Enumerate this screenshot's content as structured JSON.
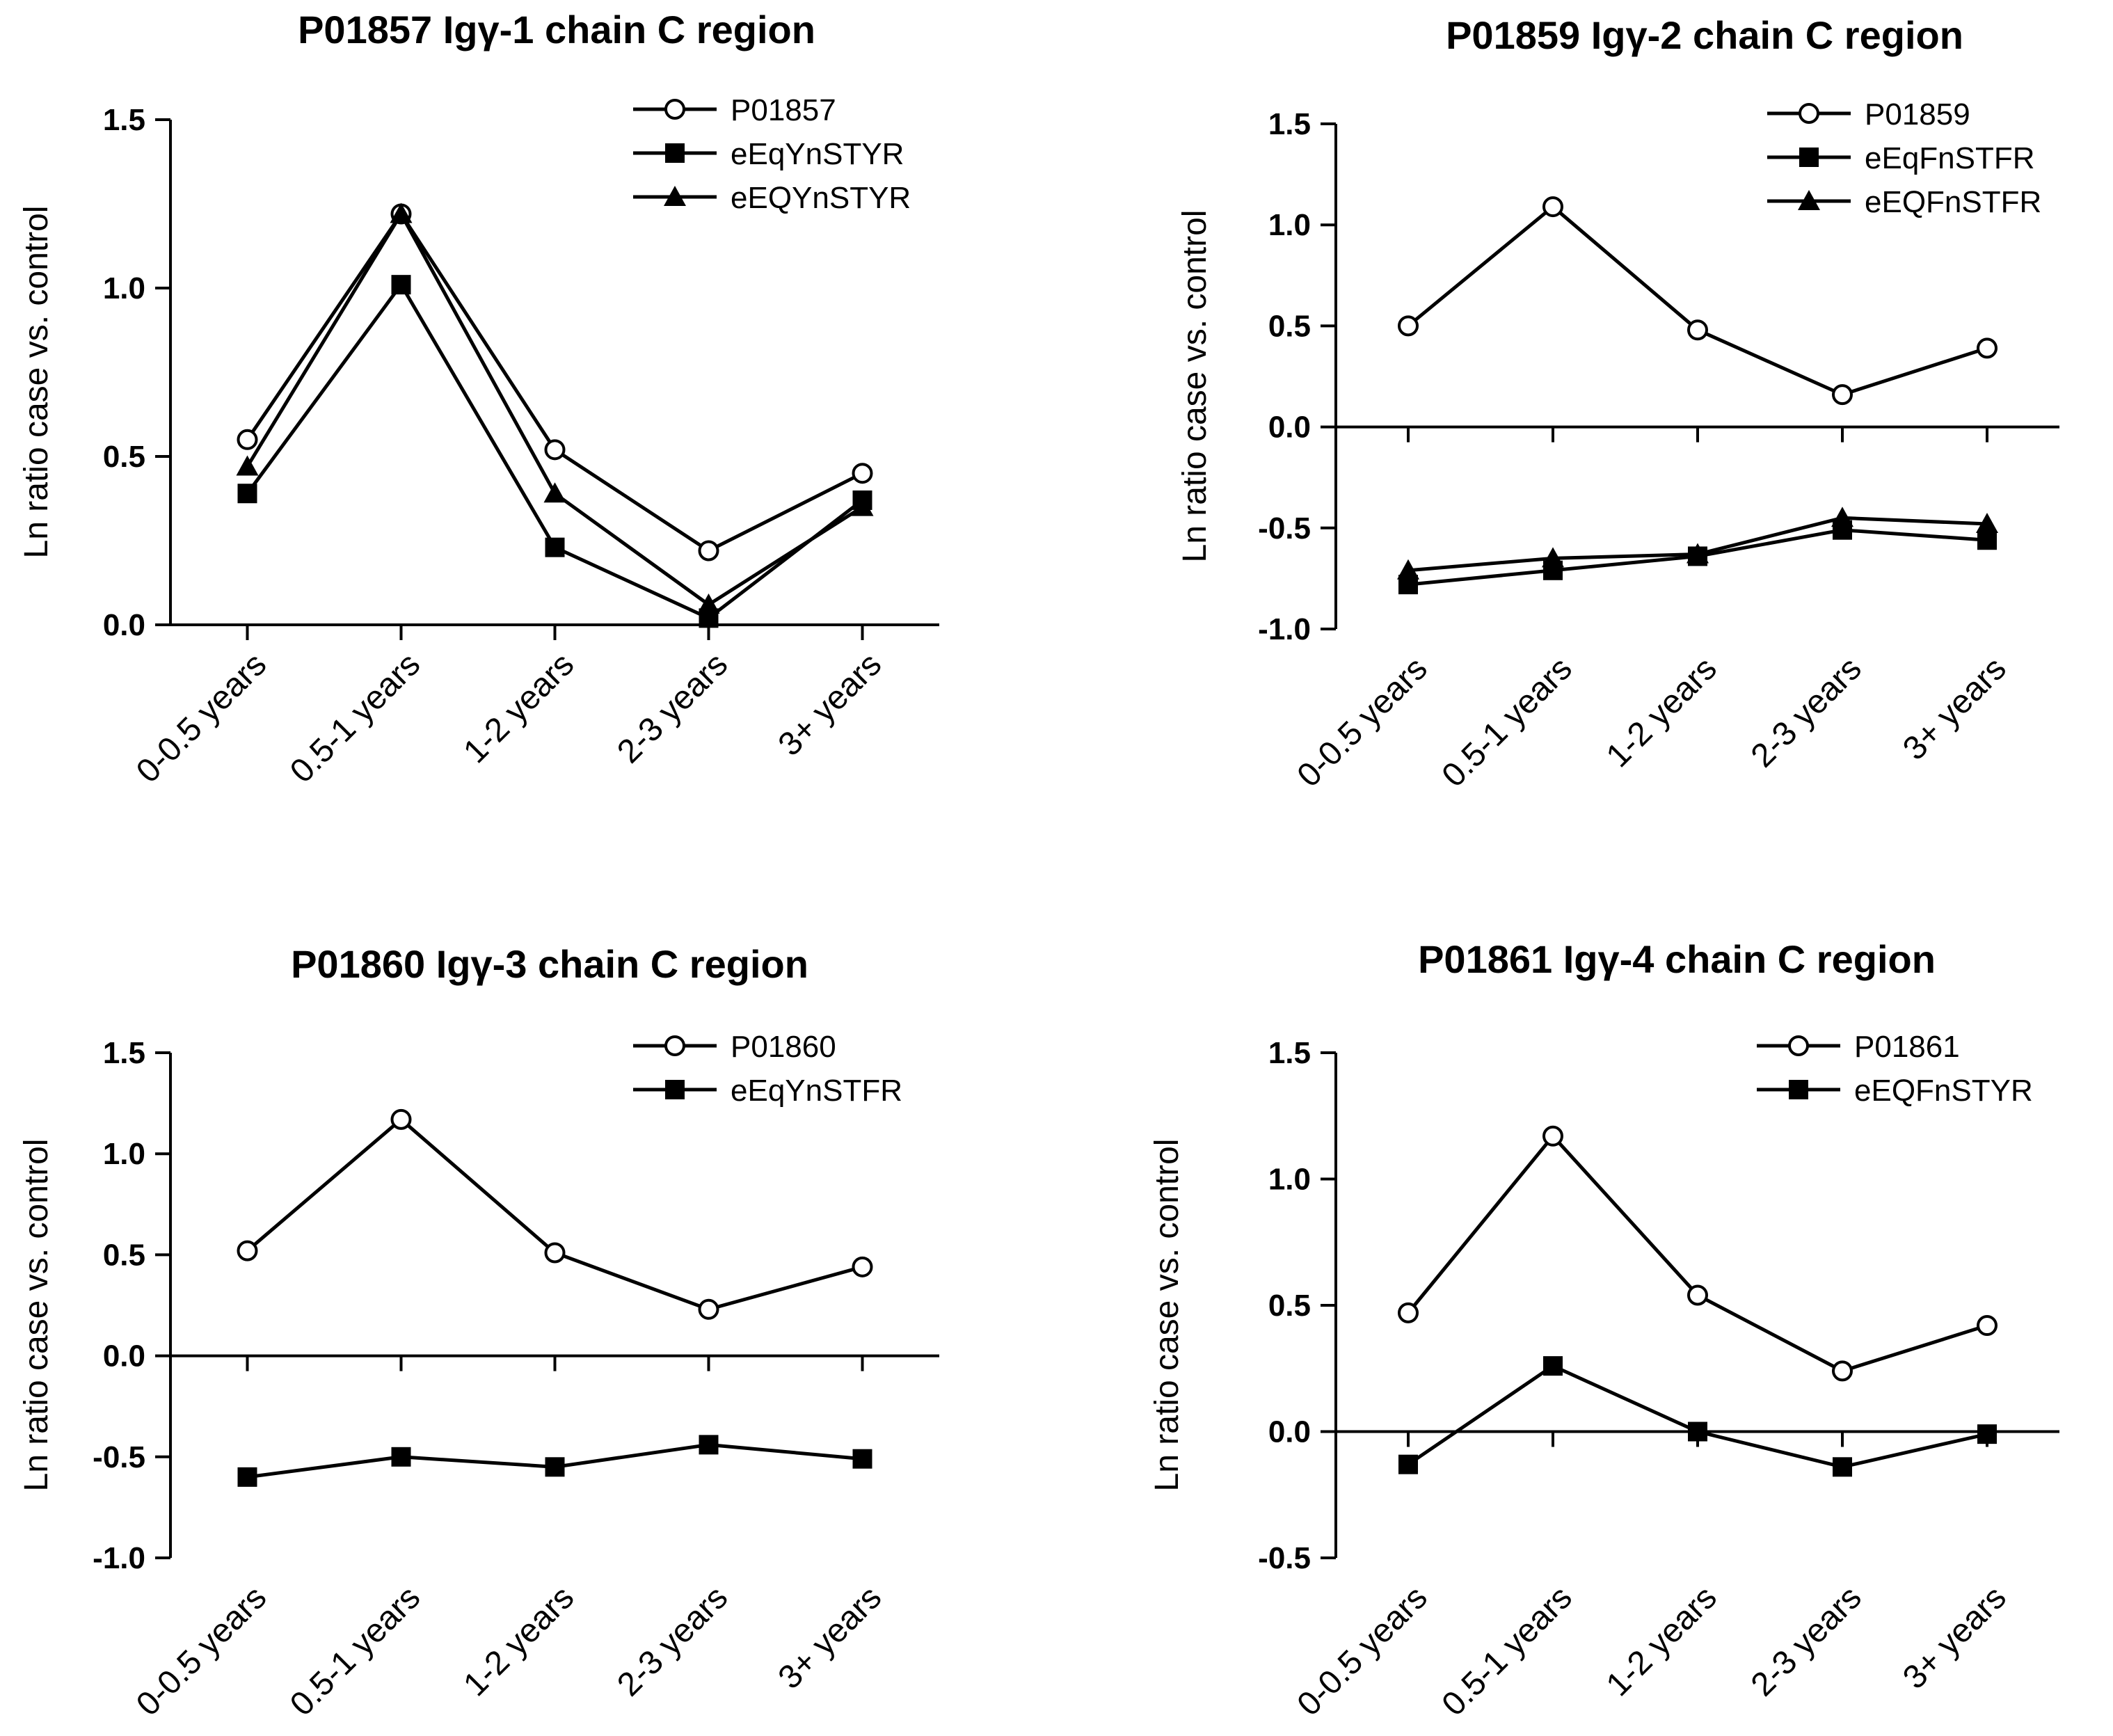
{
  "figure": {
    "ylabel": "Ln ratio case vs. control"
  },
  "chart_data": [
    {
      "type": "line",
      "title": "P01857 Igγ-1 chain C region",
      "ylabel": "Ln ratio case vs. control",
      "categories": [
        "0-0.5 years",
        "0.5-1 years",
        "1-2 years",
        "2-3 years",
        "3+ years"
      ],
      "ylim": [
        0,
        1.5
      ],
      "yticks": [
        "0.0",
        "0.5",
        "1.0",
        "1.5"
      ],
      "series": [
        {
          "name": "P01857",
          "marker": "circle-open",
          "values": [
            0.55,
            1.22,
            0.52,
            0.22,
            0.45
          ]
        },
        {
          "name": "eEqYnSTYR",
          "marker": "square-filled",
          "values": [
            0.39,
            1.01,
            0.23,
            0.02,
            0.37
          ]
        },
        {
          "name": "eEQYnSTYR",
          "marker": "triangle-filled",
          "values": [
            0.47,
            1.22,
            0.39,
            0.06,
            0.35
          ]
        }
      ]
    },
    {
      "type": "line",
      "title": "P01859 Igγ-2 chain C region",
      "ylabel": "Ln ratio case vs. control",
      "categories": [
        "0-0.5 years",
        "0.5-1 years",
        "1-2 years",
        "2-3 years",
        "3+ years"
      ],
      "ylim": [
        -1.0,
        1.5
      ],
      "yticks": [
        "-1.0",
        "-0.5",
        "0.0",
        "0.5",
        "1.0",
        "1.5"
      ],
      "series": [
        {
          "name": "P01859",
          "marker": "circle-open",
          "values": [
            0.5,
            1.09,
            0.48,
            0.16,
            0.39
          ]
        },
        {
          "name": "eEqFnSTFR",
          "marker": "square-filled",
          "values": [
            -0.78,
            -0.71,
            -0.64,
            -0.51,
            -0.56
          ]
        },
        {
          "name": "eEQFnSTFR",
          "marker": "triangle-filled",
          "values": [
            -0.71,
            -0.65,
            -0.63,
            -0.45,
            -0.48
          ]
        }
      ]
    },
    {
      "type": "line",
      "title": "P01860 Igγ-3 chain C region",
      "ylabel": "Ln ratio case vs. control",
      "categories": [
        "0-0.5 years",
        "0.5-1 years",
        "1-2 years",
        "2-3 years",
        "3+ years"
      ],
      "ylim": [
        -1.0,
        1.5
      ],
      "yticks": [
        "-1.0",
        "-0.5",
        "0.0",
        "0.5",
        "1.0",
        "1.5"
      ],
      "series": [
        {
          "name": "P01860",
          "marker": "circle-open",
          "values": [
            0.52,
            1.17,
            0.51,
            0.23,
            0.44
          ]
        },
        {
          "name": "eEqYnSTFR",
          "marker": "square-filled",
          "values": [
            -0.6,
            -0.5,
            -0.55,
            -0.44,
            -0.51
          ]
        }
      ]
    },
    {
      "type": "line",
      "title": "P01861 Igγ-4 chain C region",
      "ylabel": "Ln ratio case vs. control",
      "categories": [
        "0-0.5 years",
        "0.5-1 years",
        "1-2 years",
        "2-3 years",
        "3+ years"
      ],
      "ylim": [
        -0.5,
        1.5
      ],
      "yticks": [
        "-0.5",
        "0.0",
        "0.5",
        "1.0",
        "1.5"
      ],
      "series": [
        {
          "name": "P01861",
          "marker": "circle-open",
          "values": [
            0.47,
            1.17,
            0.54,
            0.24,
            0.42
          ]
        },
        {
          "name": "eEQFnSTYR",
          "marker": "square-filled",
          "values": [
            -0.13,
            0.26,
            0.0,
            -0.14,
            -0.01
          ]
        }
      ]
    }
  ]
}
